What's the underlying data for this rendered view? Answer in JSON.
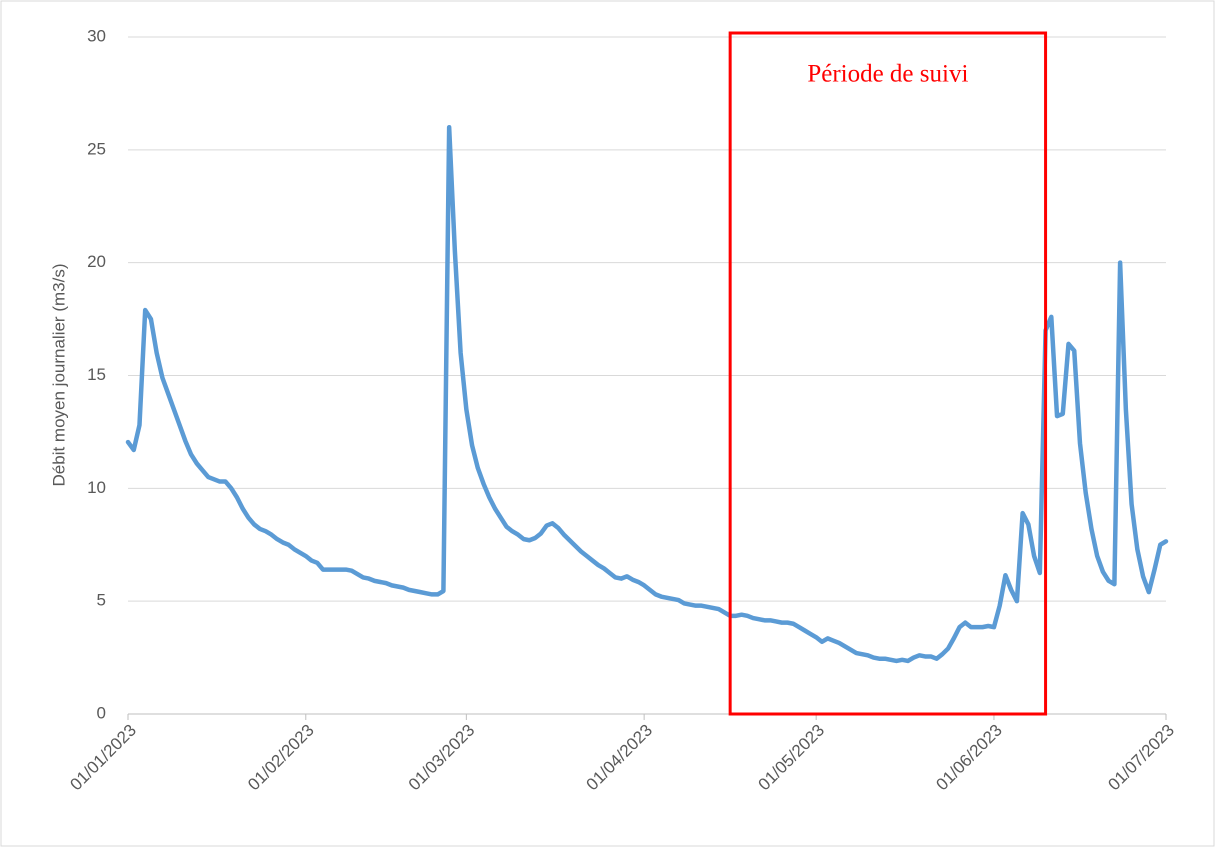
{
  "chart_data": {
    "type": "line",
    "y_label": "Débit moyen journalier (m3/s)",
    "x": [
      "01/01/2023",
      "02/01/2023",
      "03/01/2023",
      "04/01/2023",
      "05/01/2023",
      "06/01/2023",
      "07/01/2023",
      "08/01/2023",
      "09/01/2023",
      "10/01/2023",
      "11/01/2023",
      "12/01/2023",
      "13/01/2023",
      "14/01/2023",
      "15/01/2023",
      "16/01/2023",
      "17/01/2023",
      "18/01/2023",
      "19/01/2023",
      "20/01/2023",
      "21/01/2023",
      "22/01/2023",
      "23/01/2023",
      "24/01/2023",
      "25/01/2023",
      "26/01/2023",
      "27/01/2023",
      "28/01/2023",
      "29/01/2023",
      "30/01/2023",
      "31/01/2023",
      "01/02/2023",
      "02/02/2023",
      "03/02/2023",
      "04/02/2023",
      "05/02/2023",
      "06/02/2023",
      "07/02/2023",
      "08/02/2023",
      "09/02/2023",
      "10/02/2023",
      "11/02/2023",
      "12/02/2023",
      "13/02/2023",
      "14/02/2023",
      "15/02/2023",
      "16/02/2023",
      "17/02/2023",
      "18/02/2023",
      "19/02/2023",
      "20/02/2023",
      "21/02/2023",
      "22/02/2023",
      "23/02/2023",
      "24/02/2023",
      "25/02/2023",
      "26/02/2023",
      "27/02/2023",
      "28/02/2023",
      "01/03/2023",
      "02/03/2023",
      "03/03/2023",
      "04/03/2023",
      "05/03/2023",
      "06/03/2023",
      "07/03/2023",
      "08/03/2023",
      "09/03/2023",
      "10/03/2023",
      "11/03/2023",
      "12/03/2023",
      "13/03/2023",
      "14/03/2023",
      "15/03/2023",
      "16/03/2023",
      "17/03/2023",
      "18/03/2023",
      "19/03/2023",
      "20/03/2023",
      "21/03/2023",
      "22/03/2023",
      "23/03/2023",
      "24/03/2023",
      "25/03/2023",
      "26/03/2023",
      "27/03/2023",
      "28/03/2023",
      "29/03/2023",
      "30/03/2023",
      "31/03/2023",
      "01/04/2023",
      "02/04/2023",
      "03/04/2023",
      "04/04/2023",
      "05/04/2023",
      "06/04/2023",
      "07/04/2023",
      "08/04/2023",
      "09/04/2023",
      "10/04/2023",
      "11/04/2023",
      "12/04/2023",
      "13/04/2023",
      "14/04/2023",
      "15/04/2023",
      "16/04/2023",
      "17/04/2023",
      "18/04/2023",
      "19/04/2023",
      "20/04/2023",
      "21/04/2023",
      "22/04/2023",
      "23/04/2023",
      "24/04/2023",
      "25/04/2023",
      "26/04/2023",
      "27/04/2023",
      "28/04/2023",
      "29/04/2023",
      "30/04/2023",
      "01/05/2023",
      "02/05/2023",
      "03/05/2023",
      "04/05/2023",
      "05/05/2023",
      "06/05/2023",
      "07/05/2023",
      "08/05/2023",
      "09/05/2023",
      "10/05/2023",
      "11/05/2023",
      "12/05/2023",
      "13/05/2023",
      "14/05/2023",
      "15/05/2023",
      "16/05/2023",
      "17/05/2023",
      "18/05/2023",
      "19/05/2023",
      "20/05/2023",
      "21/05/2023",
      "22/05/2023",
      "23/05/2023",
      "24/05/2023",
      "25/05/2023",
      "26/05/2023",
      "27/05/2023",
      "28/05/2023",
      "29/05/2023",
      "30/05/2023",
      "31/05/2023",
      "01/06/2023",
      "02/06/2023",
      "03/06/2023",
      "04/06/2023",
      "05/06/2023",
      "06/06/2023",
      "07/06/2023",
      "08/06/2023",
      "09/06/2023",
      "10/06/2023",
      "11/06/2023",
      "12/06/2023",
      "13/06/2023",
      "14/06/2023",
      "15/06/2023",
      "16/06/2023",
      "17/06/2023",
      "18/06/2023",
      "19/06/2023",
      "20/06/2023",
      "21/06/2023",
      "22/06/2023",
      "23/06/2023",
      "24/06/2023",
      "25/06/2023",
      "26/06/2023",
      "27/06/2023",
      "28/06/2023",
      "29/06/2023",
      "30/06/2023",
      "01/07/2023"
    ],
    "values": [
      12.05,
      11.7,
      12.8,
      17.9,
      17.5,
      16.0,
      14.9,
      14.2,
      13.5,
      12.8,
      12.1,
      11.5,
      11.1,
      10.8,
      10.5,
      10.4,
      10.3,
      10.3,
      10.0,
      9.6,
      9.1,
      8.7,
      8.4,
      8.2,
      8.1,
      7.95,
      7.75,
      7.6,
      7.5,
      7.3,
      7.15,
      7.0,
      6.8,
      6.7,
      6.4,
      6.4,
      6.4,
      6.4,
      6.4,
      6.35,
      6.2,
      6.05,
      6.0,
      5.9,
      5.85,
      5.8,
      5.7,
      5.65,
      5.6,
      5.5,
      5.45,
      5.4,
      5.35,
      5.3,
      5.3,
      5.45,
      26.0,
      20.5,
      16.0,
      13.5,
      11.9,
      10.9,
      10.2,
      9.6,
      9.1,
      8.7,
      8.3,
      8.1,
      7.95,
      7.75,
      7.7,
      7.8,
      8.0,
      8.35,
      8.45,
      8.25,
      7.95,
      7.7,
      7.45,
      7.2,
      7.0,
      6.8,
      6.6,
      6.45,
      6.25,
      6.05,
      6.0,
      6.1,
      5.95,
      5.85,
      5.7,
      5.5,
      5.3,
      5.2,
      5.15,
      5.1,
      5.05,
      4.9,
      4.85,
      4.8,
      4.8,
      4.75,
      4.7,
      4.65,
      4.5,
      4.35,
      4.35,
      4.4,
      4.35,
      4.25,
      4.2,
      4.15,
      4.15,
      4.1,
      4.05,
      4.05,
      4.0,
      3.85,
      3.7,
      3.55,
      3.4,
      3.2,
      3.35,
      3.25,
      3.15,
      3.0,
      2.85,
      2.7,
      2.65,
      2.6,
      2.5,
      2.45,
      2.45,
      2.4,
      2.35,
      2.4,
      2.35,
      2.5,
      2.6,
      2.55,
      2.55,
      2.45,
      2.65,
      2.9,
      3.35,
      3.85,
      4.05,
      3.85,
      3.85,
      3.85,
      3.9,
      3.85,
      4.8,
      6.15,
      5.5,
      5.0,
      8.9,
      8.4,
      7.0,
      6.25,
      17.0,
      17.6,
      13.2,
      13.3,
      16.4,
      16.1,
      12.0,
      9.8,
      8.2,
      7.0,
      6.3,
      5.9,
      5.75,
      20.0,
      13.5,
      9.3,
      7.3,
      6.1,
      5.4,
      6.4,
      7.5,
      7.65
    ],
    "color": "#5b9bd5",
    "xlim": [
      "01/01/2023",
      "01/07/2023"
    ],
    "xticks": [
      "01/01/2023",
      "01/02/2023",
      "01/03/2023",
      "01/04/2023",
      "01/05/2023",
      "01/06/2023",
      "01/07/2023"
    ],
    "ylim": [
      0,
      30
    ],
    "yticks": [
      0,
      5,
      10,
      15,
      20,
      25,
      30
    ],
    "grid": true,
    "annotations": [
      {
        "text": "Période de suivi",
        "x_start": "16/04/2023",
        "x_end": "10/06/2023",
        "color": "#ff0000"
      }
    ]
  }
}
